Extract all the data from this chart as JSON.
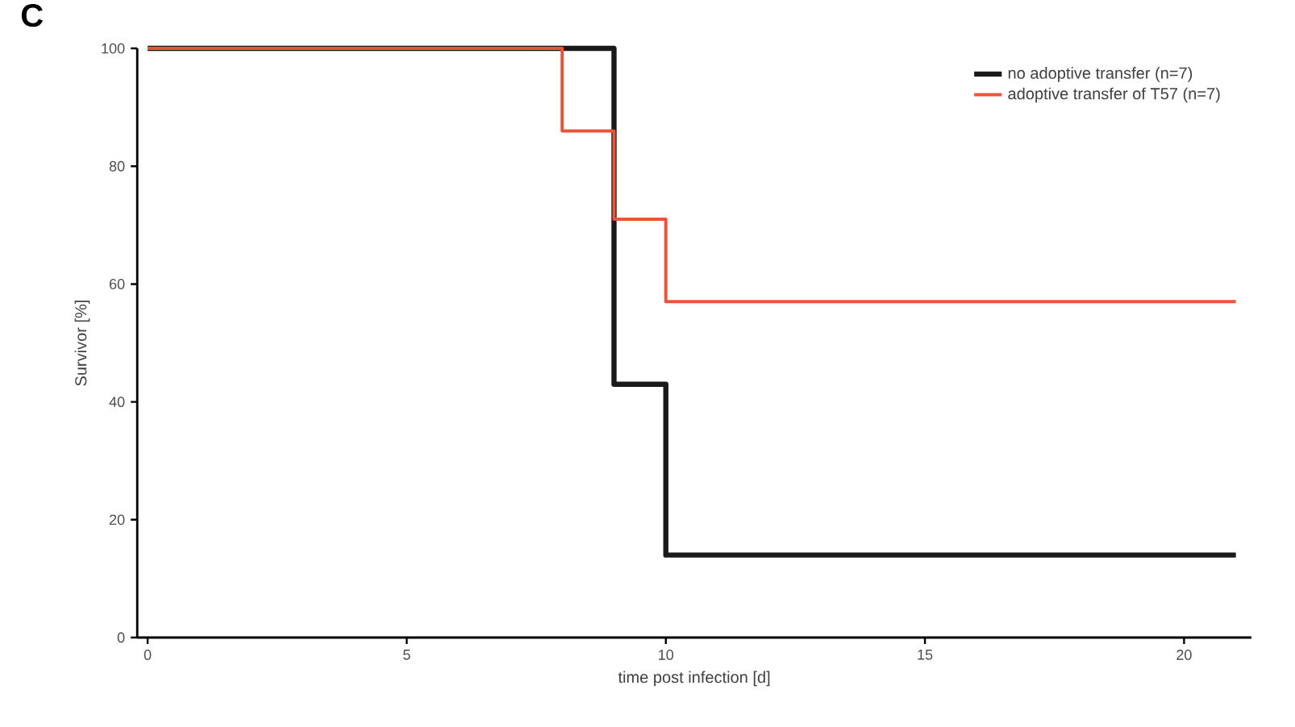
{
  "chart_data": {
    "type": "step",
    "title": "C",
    "xlabel": "time post infection [d]",
    "ylabel": "Survivor [%]",
    "series": [
      {
        "name": "no adoptive transfer (n=7)",
        "color": "#1a1a1a",
        "x": [
          0,
          9,
          10,
          21
        ],
        "values": [
          100,
          43,
          14,
          14
        ]
      },
      {
        "name": "adoptive transfer of T57 (n=7)",
        "color": "#e8553a",
        "x": [
          0,
          8,
          9,
          10,
          21
        ],
        "values": [
          100,
          86,
          71,
          57,
          57
        ]
      }
    ],
    "xlim": [
      -0.2,
      21.3
    ],
    "ylim": [
      0,
      100
    ],
    "xticks": [
      0,
      5,
      10,
      15,
      20
    ],
    "yticks": [
      0,
      20,
      40,
      60,
      80,
      100
    ],
    "legend": "top right",
    "grid": false
  }
}
